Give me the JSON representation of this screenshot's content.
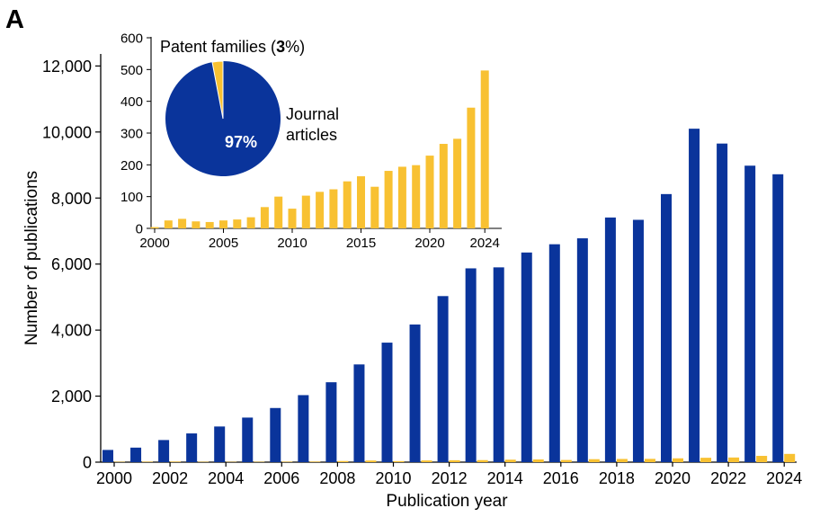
{
  "panel_label": "A",
  "colors": {
    "journal": "#0a349b",
    "patent": "#f8c132",
    "axis": "#000000"
  },
  "chart_data": [
    {
      "type": "bar",
      "xlabel": "Publication year",
      "ylabel": "Number of publications",
      "ylim": [
        0,
        12800
      ],
      "yticks": [
        0,
        2000,
        4000,
        6000,
        8000,
        10000,
        12000
      ],
      "ytick_labels": [
        "0",
        "2,000",
        "4,000",
        "6,000",
        "8,000",
        "10,000",
        "12,000"
      ],
      "categories": [
        2000,
        2001,
        2002,
        2003,
        2004,
        2005,
        2006,
        2007,
        2008,
        2009,
        2010,
        2011,
        2012,
        2013,
        2014,
        2015,
        2016,
        2017,
        2018,
        2019,
        2020,
        2021,
        2022,
        2023,
        2024
      ],
      "xtick_labels": [
        "2000",
        "2002",
        "2004",
        "2006",
        "2008",
        "2010",
        "2012",
        "2014",
        "2016",
        "2018",
        "2020",
        "2022",
        "2024"
      ],
      "series": [
        {
          "key": "journal",
          "values": [
            370,
            440,
            670,
            870,
            1080,
            1350,
            1640,
            2030,
            2420,
            2960,
            3620,
            4170,
            5030,
            5870,
            5900,
            6350,
            6600,
            6780,
            7410,
            7340,
            8120,
            10100,
            9650,
            8980,
            8720
          ]
        },
        {
          "key": "patent",
          "values": [
            12,
            15,
            18,
            12,
            10,
            12,
            15,
            18,
            35,
            50,
            32,
            52,
            58,
            62,
            75,
            82,
            66,
            90,
            97,
            100,
            116,
            133,
            141,
            190,
            250
          ]
        }
      ],
      "grid": false
    },
    {
      "type": "bar",
      "inset": true,
      "ylim": [
        0,
        600
      ],
      "yticks": [
        0,
        100,
        200,
        300,
        400,
        500,
        600
      ],
      "ytick_labels": [
        "0",
        "100",
        "200",
        "300",
        "400",
        "500",
        "600"
      ],
      "categories": [
        2000,
        2001,
        2002,
        2003,
        2004,
        2005,
        2006,
        2007,
        2008,
        2009,
        2010,
        2011,
        2012,
        2013,
        2014,
        2015,
        2016,
        2017,
        2018,
        2019,
        2020,
        2021,
        2022,
        2023,
        2024
      ],
      "xtick_labels": [
        "2000",
        "2005",
        "2010",
        "2015",
        "2020",
        "2024"
      ],
      "series": [
        {
          "key": "patent",
          "values": [
            4,
            25,
            30,
            22,
            20,
            25,
            28,
            35,
            67,
            100,
            62,
            103,
            115,
            123,
            148,
            164,
            131,
            181,
            194,
            199,
            229,
            266,
            282,
            380,
            497
          ]
        }
      ]
    },
    {
      "type": "pie",
      "slices": [
        {
          "key": "journal",
          "label_lines": [
            "Journal",
            "articles"
          ],
          "value": 97,
          "pct_label": "97%"
        },
        {
          "key": "patent",
          "label_main": "Patent families (",
          "label_bold": "3",
          "label_tail": "%)",
          "value": 3
        }
      ]
    }
  ]
}
